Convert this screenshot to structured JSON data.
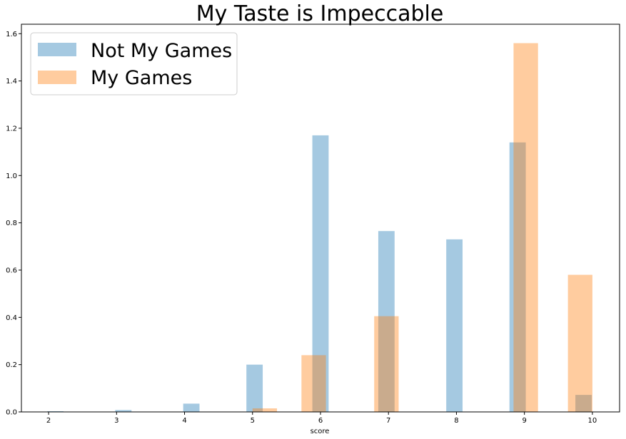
{
  "chart_data": {
    "type": "bar",
    "title": "My Taste is Impeccable",
    "xlabel": "score",
    "ylabel": "",
    "xlim": [
      1.6,
      10.4
    ],
    "ylim": [
      0,
      1.64
    ],
    "xticks": [
      2,
      3,
      4,
      5,
      6,
      7,
      8,
      9,
      10
    ],
    "yticks": [
      0.0,
      0.2,
      0.4,
      0.6,
      0.8,
      1.0,
      1.2,
      1.4,
      1.6
    ],
    "ytick_labels": [
      "0.0",
      "0.2",
      "0.4",
      "0.6",
      "0.8",
      "1.0",
      "1.2",
      "1.4",
      "1.6"
    ],
    "grid": false,
    "legend_position": "top-left",
    "series": [
      {
        "name": "Not My Games",
        "color": "#1f77b4",
        "opacity": 0.4,
        "bin_width": 0.24,
        "bars": [
          {
            "x": 2.1,
            "value": 0.003
          },
          {
            "x": 3.1,
            "value": 0.008
          },
          {
            "x": 4.1,
            "value": 0.035
          },
          {
            "x": 5.03,
            "value": 0.2
          },
          {
            "x": 6.0,
            "value": 1.17
          },
          {
            "x": 6.97,
            "value": 0.765
          },
          {
            "x": 7.97,
            "value": 0.73
          },
          {
            "x": 8.9,
            "value": 1.14
          },
          {
            "x": 9.87,
            "value": 0.072
          }
        ]
      },
      {
        "name": "My Games",
        "color": "#ff7f0e",
        "opacity": 0.4,
        "bin_width": 0.36,
        "bars": [
          {
            "x": 5.18,
            "value": 0.015
          },
          {
            "x": 5.9,
            "value": 0.24
          },
          {
            "x": 6.97,
            "value": 0.405
          },
          {
            "x": 9.02,
            "value": 1.56
          },
          {
            "x": 9.82,
            "value": 0.58
          }
        ]
      }
    ]
  }
}
